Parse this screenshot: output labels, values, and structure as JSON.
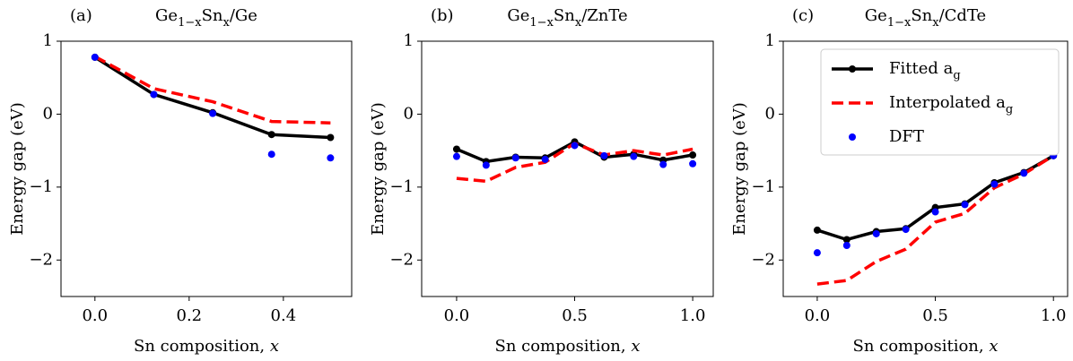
{
  "chart_data": [
    {
      "type": "line",
      "panel_label": "(a)",
      "title": [
        "Ge",
        "1−x",
        "Sn",
        "x",
        "/Ge"
      ],
      "xlabel": [
        "Sn composition, ",
        "x"
      ],
      "ylabel": "Energy gap (eV)",
      "x": [
        0,
        0.125,
        0.25,
        0.375,
        0.5
      ],
      "xlim": [
        -0.072,
        0.545
      ],
      "xticks": [
        {
          "value": 0,
          "label": "0.0"
        },
        0.2,
        0.4
      ],
      "ylim": [
        -2.5,
        1
      ],
      "yticks": [
        1,
        0,
        {
          "value": -1,
          "label": "−1"
        },
        {
          "value": -2,
          "label": "−2"
        }
      ],
      "series": [
        {
          "name": [
            "Fitted a",
            "g"
          ],
          "color": "#000000",
          "linestyle": "solid",
          "marker": true,
          "values": [
            0.78,
            0.27,
            0.02,
            -0.28,
            -0.32
          ]
        },
        {
          "name": [
            "Interpolated a",
            "g"
          ],
          "color": "#ff0000",
          "linestyle": "dashed",
          "marker": false,
          "values": [
            0.79,
            0.35,
            0.17,
            -0.1,
            -0.12
          ]
        },
        {
          "name": [
            "DFT"
          ],
          "color": "#0000ff",
          "linestyle": "none",
          "marker": true,
          "values": [
            0.78,
            0.27,
            0.01,
            -0.55,
            -0.6
          ]
        }
      ]
    },
    {
      "type": "line",
      "panel_label": "(b)",
      "title": [
        "Ge",
        "1−x",
        "Sn",
        "x",
        "/ZnTe"
      ],
      "xlabel": [
        "Sn composition, ",
        "x"
      ],
      "ylabel": "Energy gap (eV)",
      "x": [
        0,
        0.125,
        0.25,
        0.375,
        0.5,
        0.625,
        0.75,
        0.875,
        1
      ],
      "xlim": [
        -0.148,
        1.087
      ],
      "xticks": [
        {
          "value": 0,
          "label": "0.0"
        },
        0.5,
        {
          "value": 1,
          "label": "1.0"
        }
      ],
      "ylim": [
        -2.5,
        1
      ],
      "yticks": [
        1,
        0,
        {
          "value": -1,
          "label": "−1"
        },
        {
          "value": -2,
          "label": "−2"
        }
      ],
      "series": [
        {
          "name": [
            "Fitted a",
            "g"
          ],
          "color": "#000000",
          "linestyle": "solid",
          "marker": true,
          "values": [
            -0.48,
            -0.65,
            -0.59,
            -0.6,
            -0.38,
            -0.59,
            -0.55,
            -0.63,
            -0.56
          ]
        },
        {
          "name": [
            "Interpolated a",
            "g"
          ],
          "color": "#ff0000",
          "linestyle": "dashed",
          "marker": false,
          "values": [
            -0.88,
            -0.92,
            -0.73,
            -0.66,
            -0.4,
            -0.56,
            -0.5,
            -0.56,
            -0.48
          ]
        },
        {
          "name": [
            "DFT"
          ],
          "color": "#0000ff",
          "linestyle": "none",
          "marker": true,
          "values": [
            -0.58,
            -0.7,
            -0.6,
            -0.62,
            -0.43,
            -0.57,
            -0.58,
            -0.69,
            -0.68
          ]
        }
      ]
    },
    {
      "type": "line",
      "panel_label": "(c)",
      "title": [
        "Ge",
        "1−x",
        "Sn",
        "x",
        "/CdTe"
      ],
      "xlabel": [
        "Sn composition, ",
        "x"
      ],
      "ylabel": "Energy gap (eV)",
      "x": [
        0,
        0.125,
        0.25,
        0.375,
        0.5,
        0.625,
        0.75,
        0.875,
        1
      ],
      "xlim": [
        -0.144,
        1.06
      ],
      "xticks": [
        {
          "value": 0,
          "label": "0.0"
        },
        0.5,
        {
          "value": 1,
          "label": "1.0"
        }
      ],
      "ylim": [
        -2.5,
        1
      ],
      "yticks": [
        1,
        0,
        {
          "value": -1,
          "label": "−1"
        },
        {
          "value": -2,
          "label": "−2"
        }
      ],
      "legend": "upper right",
      "series": [
        {
          "name": [
            "Fitted a",
            "g"
          ],
          "color": "#000000",
          "linestyle": "solid",
          "marker": true,
          "values": [
            -1.59,
            -1.72,
            -1.61,
            -1.57,
            -1.28,
            -1.23,
            -0.94,
            -0.8,
            -0.57
          ]
        },
        {
          "name": [
            "Interpolated a",
            "g"
          ],
          "color": "#ff0000",
          "linestyle": "dashed",
          "marker": false,
          "values": [
            -2.33,
            -2.28,
            -2.02,
            -1.85,
            -1.48,
            -1.36,
            -1.01,
            -0.82,
            -0.57
          ]
        },
        {
          "name": [
            "DFT"
          ],
          "color": "#0000ff",
          "linestyle": "none",
          "marker": true,
          "values": [
            -1.9,
            -1.8,
            -1.64,
            -1.58,
            -1.34,
            -1.24,
            -0.96,
            -0.81,
            -0.57
          ]
        }
      ]
    }
  ]
}
